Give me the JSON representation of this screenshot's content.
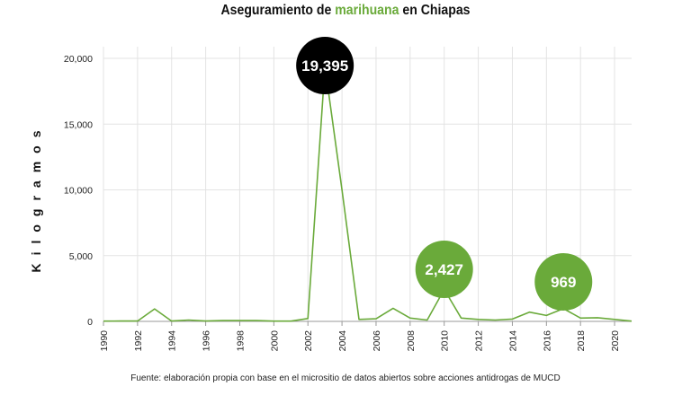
{
  "chart_data": {
    "type": "line",
    "title_parts": [
      "Aseguramiento de ",
      "marihuana",
      " en Chiapas"
    ],
    "ylabel": "Kilogramos",
    "xlabel": "",
    "source": "Fuente: elaboración propia con base en el micrositio de datos abiertos sobre acciones antidrogas de MUCD",
    "x": [
      1990,
      1991,
      1992,
      1993,
      1994,
      1995,
      1996,
      1997,
      1998,
      1999,
      2000,
      2001,
      2002,
      2003,
      2004,
      2005,
      2006,
      2007,
      2008,
      2009,
      2010,
      2011,
      2012,
      2013,
      2014,
      2015,
      2016,
      2017,
      2018,
      2019,
      2020,
      2021
    ],
    "series": [
      {
        "values": [
          20,
          30,
          30,
          950,
          30,
          100,
          30,
          60,
          60,
          60,
          20,
          20,
          220,
          19395,
          10000,
          150,
          200,
          1000,
          250,
          100,
          2427,
          250,
          150,
          100,
          180,
          700,
          450,
          969,
          250,
          280,
          150,
          20
        ]
      }
    ],
    "ylim": [
      0,
      20000
    ],
    "yticks": [
      0,
      5000,
      10000,
      15000,
      20000
    ],
    "ytick_labels": [
      "0",
      "5,000",
      "10,000",
      "15,000",
      "20,000"
    ],
    "xticks": [
      1990,
      1992,
      1994,
      1996,
      1998,
      2000,
      2002,
      2004,
      2006,
      2008,
      2010,
      2012,
      2014,
      2016,
      2018,
      2020
    ],
    "grid": true,
    "highlights": [
      {
        "year": 2003,
        "value": 19395,
        "label": "19,395",
        "color": "#000000"
      },
      {
        "year": 2010,
        "value": 2427,
        "label": "2,427",
        "color": "#6aaa3a"
      },
      {
        "year": 2017,
        "value": 969,
        "label": "969",
        "color": "#6aaa3a"
      }
    ],
    "colors": {
      "line": "#6aaa3a",
      "accent": "#6aaa3a",
      "grid": "#e3e3e3",
      "axis": "#999999"
    }
  }
}
